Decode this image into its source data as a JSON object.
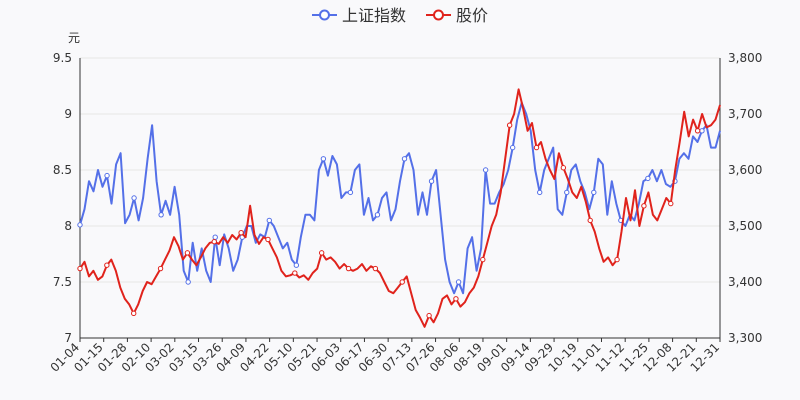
{
  "chart_data": {
    "type": "line",
    "y_left_unit": "元",
    "y_left_range": [
      7,
      9.5
    ],
    "y_left_ticks": [
      "7",
      "7.5",
      "8",
      "8.5",
      "9",
      "9.5"
    ],
    "y_right_range": [
      3300,
      3800
    ],
    "y_right_ticks": [
      "3,300",
      "3,400",
      "3,500",
      "3,600",
      "3,700",
      "3,800"
    ],
    "x_ticks": [
      "01-04",
      "01-15",
      "01-28",
      "02-10",
      "03-02",
      "03-15",
      "03-26",
      "04-09",
      "04-22",
      "05-10",
      "05-21",
      "06-03",
      "06-17",
      "06-30",
      "07-13",
      "07-26",
      "08-06",
      "08-19",
      "09-01",
      "09-14",
      "09-29",
      "10-19",
      "11-01",
      "11-12",
      "11-25",
      "12-08",
      "12-21",
      "12-31"
    ],
    "legend_position": "top-center",
    "series": [
      {
        "name": "上证指数",
        "axis": "right",
        "color": "#5470e8",
        "values": [
          3502,
          3530,
          3580,
          3562,
          3600,
          3570,
          3590,
          3540,
          3610,
          3630,
          3505,
          3520,
          3550,
          3510,
          3550,
          3620,
          3680,
          3580,
          3520,
          3545,
          3520,
          3570,
          3520,
          3420,
          3400,
          3470,
          3420,
          3460,
          3420,
          3400,
          3480,
          3430,
          3485,
          3460,
          3420,
          3440,
          3480,
          3500,
          3500,
          3470,
          3485,
          3480,
          3510,
          3500,
          3480,
          3460,
          3470,
          3440,
          3430,
          3480,
          3520,
          3520,
          3510,
          3600,
          3620,
          3590,
          3625,
          3610,
          3550,
          3560,
          3560,
          3600,
          3610,
          3520,
          3550,
          3510,
          3520,
          3550,
          3560,
          3510,
          3530,
          3580,
          3620,
          3630,
          3600,
          3520,
          3560,
          3520,
          3580,
          3600,
          3520,
          3440,
          3400,
          3380,
          3400,
          3380,
          3460,
          3480,
          3420,
          3460,
          3600,
          3540,
          3540,
          3560,
          3575,
          3600,
          3640,
          3690,
          3720,
          3700,
          3670,
          3600,
          3560,
          3600,
          3620,
          3640,
          3530,
          3520,
          3560,
          3600,
          3610,
          3580,
          3560,
          3530,
          3560,
          3620,
          3610,
          3520,
          3580,
          3540,
          3510,
          3500,
          3520,
          3510,
          3540,
          3580,
          3585,
          3600,
          3580,
          3600,
          3575,
          3570,
          3580,
          3620,
          3630,
          3620,
          3660,
          3650,
          3670,
          3680,
          3640,
          3640,
          3670
        ]
      },
      {
        "name": "股价",
        "axis": "left",
        "color": "#e0231c",
        "values": [
          7.62,
          7.68,
          7.55,
          7.6,
          7.52,
          7.55,
          7.65,
          7.7,
          7.6,
          7.45,
          7.35,
          7.3,
          7.22,
          7.3,
          7.42,
          7.5,
          7.48,
          7.55,
          7.62,
          7.7,
          7.78,
          7.9,
          7.82,
          7.7,
          7.76,
          7.7,
          7.65,
          7.72,
          7.8,
          7.85,
          7.86,
          7.84,
          7.9,
          7.85,
          7.92,
          7.88,
          7.94,
          7.9,
          8.18,
          7.92,
          7.84,
          7.9,
          7.88,
          7.8,
          7.72,
          7.6,
          7.55,
          7.56,
          7.58,
          7.54,
          7.56,
          7.52,
          7.58,
          7.62,
          7.76,
          7.7,
          7.72,
          7.68,
          7.62,
          7.66,
          7.62,
          7.6,
          7.62,
          7.66,
          7.6,
          7.64,
          7.62,
          7.58,
          7.5,
          7.42,
          7.4,
          7.45,
          7.5,
          7.55,
          7.4,
          7.25,
          7.18,
          7.1,
          7.2,
          7.14,
          7.22,
          7.35,
          7.38,
          7.3,
          7.35,
          7.28,
          7.32,
          7.4,
          7.45,
          7.55,
          7.7,
          7.85,
          8.0,
          8.1,
          8.3,
          8.6,
          8.9,
          9.0,
          9.22,
          9.05,
          8.85,
          8.92,
          8.7,
          8.75,
          8.6,
          8.5,
          8.42,
          8.65,
          8.52,
          8.42,
          8.3,
          8.25,
          8.35,
          8.22,
          8.05,
          7.95,
          7.8,
          7.68,
          7.72,
          7.65,
          7.7,
          7.95,
          8.25,
          8.05,
          8.32,
          8.0,
          8.18,
          8.3,
          8.1,
          8.05,
          8.15,
          8.25,
          8.2,
          8.5,
          8.75,
          9.02,
          8.8,
          8.95,
          8.85,
          9.0,
          8.88,
          8.9,
          8.95,
          9.08
        ]
      }
    ]
  }
}
